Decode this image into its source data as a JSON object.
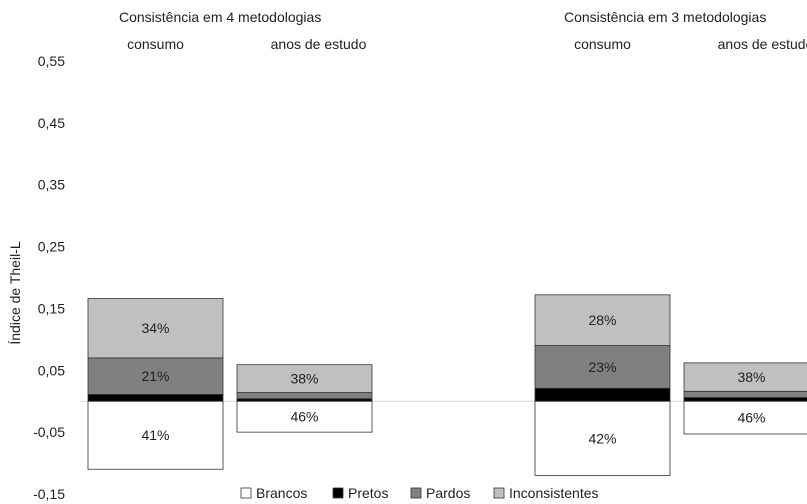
{
  "chart_data": {
    "type": "bar",
    "stacked": true,
    "ylabel": "Índice de Theil-L",
    "ylim": [
      -0.15,
      0.55
    ],
    "yticks": [
      "-0,15",
      "-0,05",
      "0,05",
      "0,15",
      "0,25",
      "0,35",
      "0,45",
      "0,55"
    ],
    "grid": false,
    "legend_position": "bottom",
    "colors": {
      "Brancos": "#ffffff",
      "Pretos": "#000000",
      "Pardos": "#808080",
      "Inconsistentes": "#c0c0c0"
    },
    "groups": [
      {
        "title": "Consistência em 4 metodologias",
        "categories": [
          "consumo",
          "anos de estudo"
        ]
      },
      {
        "title": "Consistência em 3 metodologias",
        "categories": [
          "consumo",
          "anos de estudo"
        ]
      }
    ],
    "categories": [
      "consumo",
      "anos de estudo",
      "consumo",
      "anos de estudo"
    ],
    "series": [
      {
        "name": "Brancos",
        "values": [
          -0.11,
          -0.05,
          -0.12,
          -0.053
        ],
        "labels": [
          "41%",
          "46%",
          "42%",
          "46%"
        ]
      },
      {
        "name": "Pretos",
        "values": [
          0.011,
          0.004,
          0.021,
          0.006
        ],
        "labels": [
          "",
          "",
          "",
          ""
        ]
      },
      {
        "name": "Pardos",
        "values": [
          0.059,
          0.01,
          0.069,
          0.01
        ],
        "labels": [
          "21%",
          "",
          "23%",
          ""
        ]
      },
      {
        "name": "Inconsistentes",
        "values": [
          0.096,
          0.045,
          0.082,
          0.046
        ],
        "labels": [
          "34%",
          "38%",
          "28%",
          "38%"
        ]
      }
    ]
  }
}
